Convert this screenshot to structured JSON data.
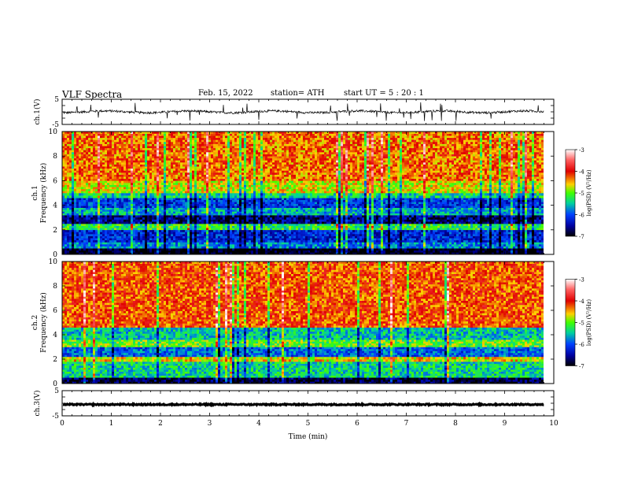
{
  "header": {
    "title": "VLF  Spectra",
    "date": "Feb. 15, 2022",
    "station": "station= ATH",
    "start": "start  UT  =    5  : 20 : 1"
  },
  "chart_data": [
    {
      "type": "line",
      "panel": "ch1-waveform",
      "ylabel": "ch.1(V)",
      "ylim": [
        -5,
        5
      ],
      "yticks": [
        "5",
        "-5"
      ],
      "xlim": [
        0,
        10
      ],
      "series": [
        {
          "color": "#000000",
          "baseline": 0,
          "description_values": [
            0
          ]
        }
      ]
    },
    {
      "type": "heatmap",
      "panel": "ch1-spectrogram",
      "ylabel_outer": "ch.1",
      "ylabel": "Frequency  (kHz)",
      "ylim": [
        0,
        10
      ],
      "yticks": [
        "0",
        "2",
        "4",
        "6",
        "8",
        "10"
      ],
      "xlim": [
        0,
        9.8
      ],
      "colorbar": {
        "label": "log(PSD) (V²/Hz)",
        "range": [
          -7,
          -3
        ],
        "ticks": [
          "-3",
          "-4",
          "-5",
          "-6",
          "-7"
        ]
      },
      "bands": [
        {
          "from": 0.0,
          "to": 0.5,
          "level": -7
        },
        {
          "from": 0.5,
          "to": 1.0,
          "level": -5.8
        },
        {
          "from": 1.0,
          "to": 2.0,
          "level": -6.2
        },
        {
          "from": 2.0,
          "to": 2.5,
          "level": -5.2
        },
        {
          "from": 2.5,
          "to": 3.2,
          "level": -6.6
        },
        {
          "from": 3.2,
          "to": 3.8,
          "level": -5.6
        },
        {
          "from": 3.8,
          "to": 4.6,
          "level": -6.1
        },
        {
          "from": 4.6,
          "to": 5.0,
          "level": -5.4
        },
        {
          "from": 5.0,
          "to": 6.0,
          "level": -4.7
        },
        {
          "from": 6.0,
          "to": 10.0,
          "level": -4.3
        }
      ]
    },
    {
      "type": "heatmap",
      "panel": "ch2-spectrogram",
      "ylabel_outer": "ch.2",
      "ylabel": "Frequency  (kHz)",
      "ylim": [
        0,
        10
      ],
      "yticks": [
        "0",
        "2",
        "4",
        "6",
        "8",
        "10"
      ],
      "xlim": [
        0,
        9.8
      ],
      "colorbar": {
        "label": "log(PSD) (V²/Hz)",
        "range": [
          -7,
          -3
        ],
        "ticks": [
          "-3",
          "-4",
          "-5",
          "-6",
          "-7"
        ]
      },
      "bands": [
        {
          "from": 0.0,
          "to": 0.5,
          "level": -6.8
        },
        {
          "from": 0.5,
          "to": 1.8,
          "level": -5.4
        },
        {
          "from": 1.8,
          "to": 2.2,
          "level": -4.6
        },
        {
          "from": 2.2,
          "to": 3.0,
          "level": -5.9
        },
        {
          "from": 3.0,
          "to": 3.6,
          "level": -5.0
        },
        {
          "from": 3.6,
          "to": 4.6,
          "level": -5.5
        },
        {
          "from": 4.6,
          "to": 10.0,
          "level": -4.2
        }
      ]
    },
    {
      "type": "line",
      "panel": "ch3-waveform",
      "ylabel": "ch.3(V)",
      "ylim": [
        -5,
        5
      ],
      "yticks": [
        "5",
        "-5"
      ],
      "xlim": [
        0,
        10
      ],
      "xlabel": "Time  (min)",
      "xticks": [
        "0",
        "1",
        "2",
        "3",
        "4",
        "5",
        "6",
        "7",
        "8",
        "9",
        "10"
      ],
      "series": [
        {
          "color": "#000000",
          "baseline": -0.5,
          "description_values": [
            -0.5
          ]
        }
      ]
    }
  ]
}
